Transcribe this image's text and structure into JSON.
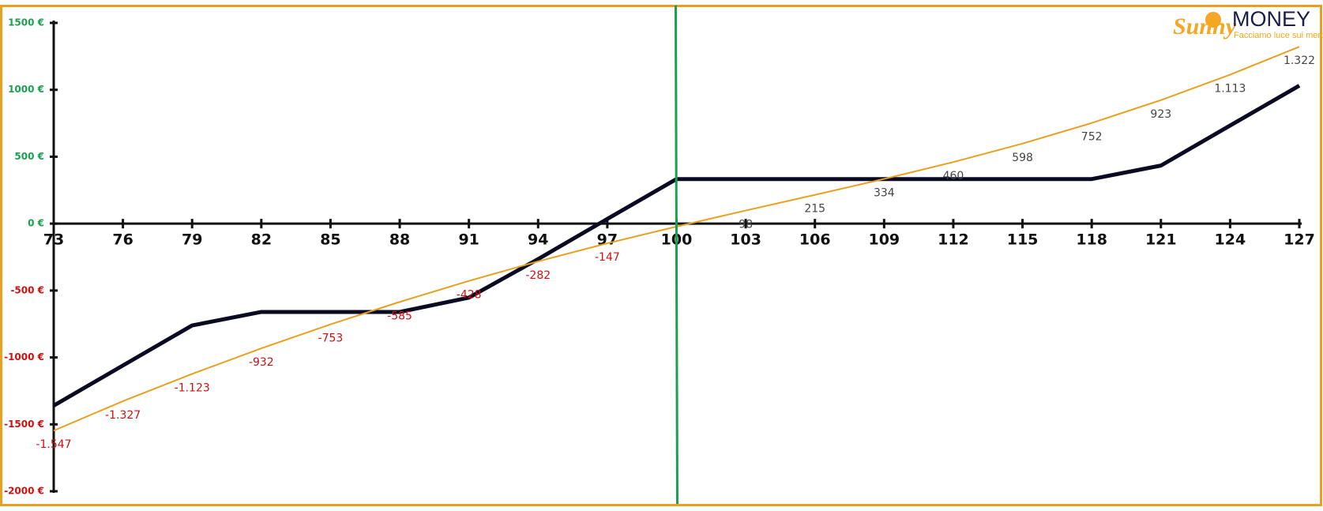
{
  "logo": {
    "brand_a": "Sunny",
    "brand_b": "MONEY",
    "tagline": "Facciamo luce sui mercati"
  },
  "chart_data": {
    "type": "line",
    "x": [
      73,
      76,
      79,
      82,
      85,
      88,
      91,
      94,
      97,
      100,
      103,
      106,
      109,
      112,
      115,
      118,
      121,
      124,
      127
    ],
    "xlim": [
      73,
      127
    ],
    "xticks": [
      73,
      76,
      79,
      82,
      85,
      88,
      91,
      94,
      97,
      100,
      103,
      106,
      109,
      112,
      115,
      118,
      121,
      124,
      127
    ],
    "ylim": [
      -2000,
      1500
    ],
    "yticks": [
      {
        "value": 1500,
        "label": "1500 €"
      },
      {
        "value": 1000,
        "label": "1000 €"
      },
      {
        "value": 500,
        "label": "500 €"
      },
      {
        "value": 0,
        "label": "0 €"
      },
      {
        "value": -500,
        "label": "-500 €"
      },
      {
        "value": -1000,
        "label": "-1000 €"
      },
      {
        "value": -1500,
        "label": "-1500 €"
      },
      {
        "value": -2000,
        "label": "-2000 €"
      }
    ],
    "positive_color": "#1aa050",
    "negative_color": "#d01010",
    "vline": {
      "x": 100,
      "color": "#1aa050"
    },
    "series": [
      {
        "color": "#0a0a23",
        "width": 5,
        "values": [
          -1360,
          -1060,
          -761,
          -660,
          -660,
          -660,
          -553,
          -265,
          35,
          333,
          333,
          333,
          333,
          333,
          333,
          333,
          434,
          733,
          1031
        ]
      },
      {
        "color": "#e8a020",
        "width": 2,
        "values": [
          -1547,
          -1327,
          -1123,
          -932,
          -753,
          -585,
          -428,
          -282,
          -147,
          -22,
          98,
          215,
          334,
          460,
          598,
          752,
          923,
          1113,
          1322
        ],
        "value_labels": [
          "-1.547",
          "-1.327",
          "-1.123",
          "-932",
          "-753",
          "-585",
          "-428",
          "-282",
          "-147",
          null,
          "98",
          "215",
          "334",
          "460",
          "598",
          "752",
          "923",
          "1.113",
          "1.322"
        ]
      }
    ]
  }
}
